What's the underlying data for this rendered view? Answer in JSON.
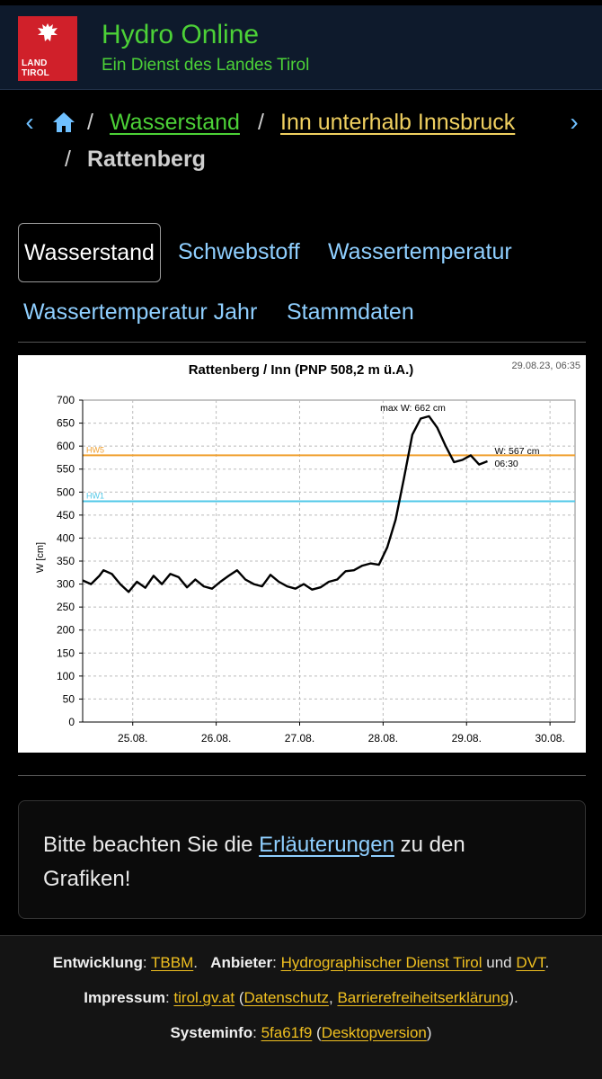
{
  "header": {
    "logo_text_line1": "LAND",
    "logo_text_line2": "TIROL",
    "title": "Hydro Online",
    "subtitle": "Ein Dienst des Landes Tirol"
  },
  "breadcrumb": {
    "link1": "Wasserstand",
    "link2": "Inn unterhalb Innsbruck",
    "current": "Rattenberg",
    "separator": "/",
    "prev_icon": "‹",
    "next_icon": "›"
  },
  "tabs": [
    {
      "label": "Wasserstand",
      "active": true
    },
    {
      "label": "Schwebstoff",
      "active": false
    },
    {
      "label": "Wassertemperatur",
      "active": false
    },
    {
      "label": "Wassertemperatur Jahr",
      "active": false
    },
    {
      "label": "Stammdaten",
      "active": false
    }
  ],
  "chart_data": {
    "type": "line",
    "title": "Rattenberg / Inn (PNP 508,2 m ü.A.)",
    "timestamp": "29.08.23, 06:35",
    "ylabel": "W [cm]",
    "ylim": [
      0,
      700
    ],
    "yticks": [
      "0",
      "50",
      "100",
      "150",
      "200",
      "250",
      "300",
      "350",
      "400",
      "450",
      "500",
      "550",
      "600",
      "650",
      "700"
    ],
    "xlim": [
      24.4,
      30.3
    ],
    "xticks": [
      {
        "value": 25,
        "label": "25.08."
      },
      {
        "value": 26,
        "label": "26.08."
      },
      {
        "value": 27,
        "label": "27.08."
      },
      {
        "value": 28,
        "label": "28.08."
      },
      {
        "value": 29,
        "label": "29.08."
      },
      {
        "value": 30,
        "label": "30.08."
      }
    ],
    "grid": true,
    "thresholds": [
      {
        "name": "HW5",
        "value": 580,
        "color": "#f0a030"
      },
      {
        "name": "HW1",
        "value": 480,
        "color": "#50c8e8"
      }
    ],
    "annotations": {
      "max_label": "max W: 662 cm",
      "current_label": "W: 567 cm",
      "current_time": "06:30"
    },
    "series": [
      {
        "color": "#000000",
        "x": [
          24.4,
          24.5,
          24.6,
          24.65,
          24.75,
          24.85,
          24.95,
          25.05,
          25.15,
          25.25,
          25.35,
          25.45,
          25.55,
          25.65,
          25.75,
          25.85,
          25.95,
          26.05,
          26.15,
          26.25,
          26.35,
          26.45,
          26.55,
          26.65,
          26.75,
          26.85,
          26.95,
          27.05,
          27.15,
          27.25,
          27.35,
          27.45,
          27.55,
          27.65,
          27.75,
          27.85,
          27.95,
          28.05,
          28.15,
          28.25,
          28.35,
          28.45,
          28.55,
          28.65,
          28.75,
          28.85,
          28.95,
          29.05,
          29.15,
          29.25
        ],
        "y": [
          308,
          300,
          318,
          330,
          322,
          300,
          283,
          305,
          292,
          318,
          300,
          322,
          315,
          293,
          310,
          295,
          290,
          305,
          318,
          330,
          310,
          300,
          295,
          320,
          305,
          295,
          290,
          300,
          288,
          293,
          305,
          310,
          328,
          330,
          340,
          345,
          342,
          380,
          440,
          530,
          625,
          660,
          665,
          640,
          600,
          565,
          570,
          580,
          560,
          567
        ]
      }
    ]
  },
  "notice": {
    "text_before": "Bitte beachten Sie die ",
    "link": "Erläuterungen",
    "text_after": " zu den Grafiken!"
  },
  "footer": {
    "dev_label": "Entwicklung",
    "dev_link": "TBBM",
    "provider_label": "Anbieter",
    "provider_link1": "Hydrographischer Dienst Tirol",
    "and_text": "und",
    "provider_link2": "DVT",
    "imprint_label": "Impressum",
    "imprint_link": "tirol.gv.at",
    "privacy_link": "Datenschutz",
    "accessibility_link": "Barrierefreiheitserklärung",
    "sysinfo_label": "Systeminfo",
    "sysinfo_link": "5fa61f9",
    "desktop_link": "Desktopversion"
  }
}
